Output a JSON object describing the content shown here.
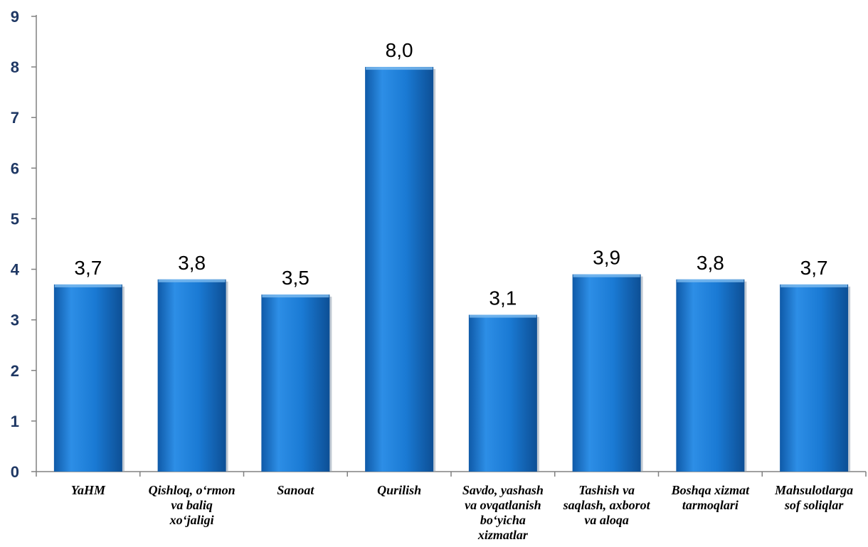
{
  "chart_data": {
    "type": "bar",
    "categories": [
      [
        "YaHM"
      ],
      [
        "Qishloq, o‘rmon",
        "va baliq",
        "xo‘jaligi"
      ],
      [
        "Sanoat"
      ],
      [
        "Qurilish"
      ],
      [
        "Savdo, yashash",
        "va ovqatlanish",
        "bo‘yicha",
        "xizmatlar"
      ],
      [
        "Tashish va",
        "saqlash, axborot",
        "va aloqa"
      ],
      [
        "Boshqa xizmat",
        "tarmoqlari"
      ],
      [
        "Mahsulotlarga",
        "sof soliqlar"
      ]
    ],
    "values": [
      3.7,
      3.8,
      3.5,
      8.0,
      3.1,
      3.9,
      3.8,
      3.7
    ],
    "data_labels": [
      "3,7",
      "3,8",
      "3,5",
      "8,0",
      "3,1",
      "3,9",
      "3,8",
      "3,7"
    ],
    "yticks": [
      "0",
      "1",
      "2",
      "3",
      "4",
      "5",
      "6",
      "7",
      "8",
      "9"
    ],
    "ylim": [
      0,
      9
    ],
    "grid": false,
    "bar_color": "#1a7ad4",
    "bar_color_light": "#2d8ee6",
    "bar_color_dark": "#0f5aa8",
    "tick_color": "#1f3864"
  }
}
